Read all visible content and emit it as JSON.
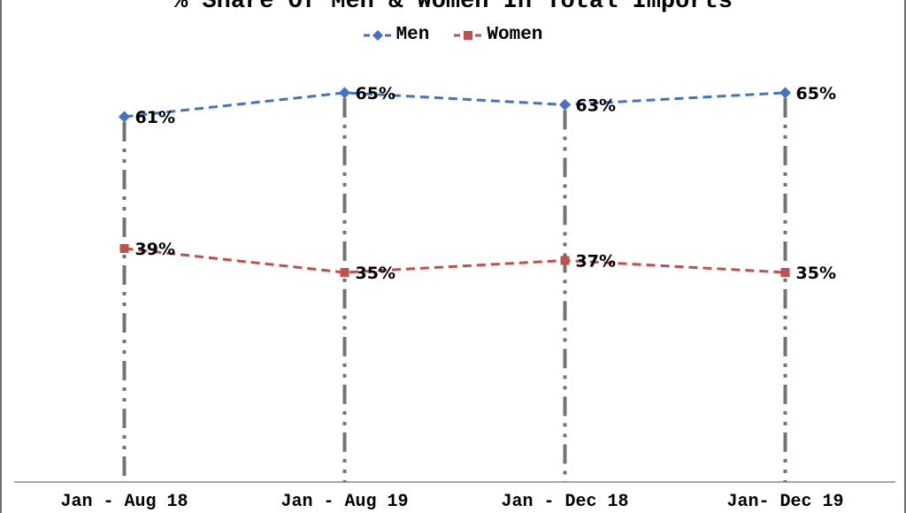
{
  "window": {
    "background": "#ffffff",
    "border_color": "#6e6e6e"
  },
  "chart_data": {
    "type": "line",
    "title": "% Share Of Men & Women In Total Imports",
    "categories": [
      "Jan - Aug 18",
      "Jan - Aug 19",
      "Jan - Dec 18",
      "Jan- Dec 19"
    ],
    "series": [
      {
        "name": "Men",
        "color": "#4472C4",
        "marker": "diamond",
        "line_style": "dashed",
        "values": [
          61,
          65,
          63,
          65
        ]
      },
      {
        "name": "Women",
        "color": "#C0504D",
        "marker": "square",
        "line_style": "dashed",
        "values": [
          39,
          35,
          37,
          35
        ]
      }
    ],
    "data_label_suffix": "%",
    "data_labels": [
      "61%",
      "65%",
      "63%",
      "65%",
      "39%",
      "35%",
      "37%",
      "35%"
    ],
    "ylim": [
      0,
      70
    ],
    "xlabel": "",
    "ylabel": "",
    "grid": false,
    "drop_lines": true,
    "legend_position": "top",
    "axis_color": "#a6a6a6",
    "drop_line_color": "#737373",
    "label_color": "#000000"
  }
}
